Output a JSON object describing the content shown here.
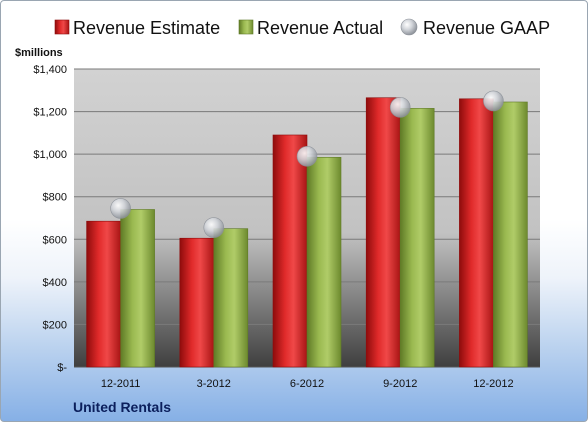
{
  "chart_data": {
    "type": "bar",
    "unit_label": "$millions",
    "company": "United Rentals",
    "categories": [
      "12-2011",
      "3-2012",
      "6-2012",
      "9-2012",
      "12-2012"
    ],
    "series": [
      {
        "name": "Revenue Estimate",
        "kind": "bar",
        "color": "#d42020",
        "values": [
          685,
          605,
          1090,
          1265,
          1260
        ]
      },
      {
        "name": "Revenue Actual",
        "kind": "bar",
        "color": "#94b34a",
        "values": [
          740,
          650,
          985,
          1215,
          1245
        ]
      },
      {
        "name": "Revenue GAAP",
        "kind": "marker",
        "color": "#c8ccd4",
        "values": [
          745,
          655,
          990,
          1220,
          1250
        ]
      }
    ],
    "ylim": [
      0,
      1400
    ],
    "yticks": [
      0,
      200,
      400,
      600,
      800,
      1000,
      1200,
      1400
    ],
    "ytick_labels": [
      "$-",
      "$200",
      "$400",
      "$600",
      "$800",
      "$1,000",
      "$1,200",
      "$1,400"
    ],
    "grid": true,
    "legend_position": "top"
  }
}
